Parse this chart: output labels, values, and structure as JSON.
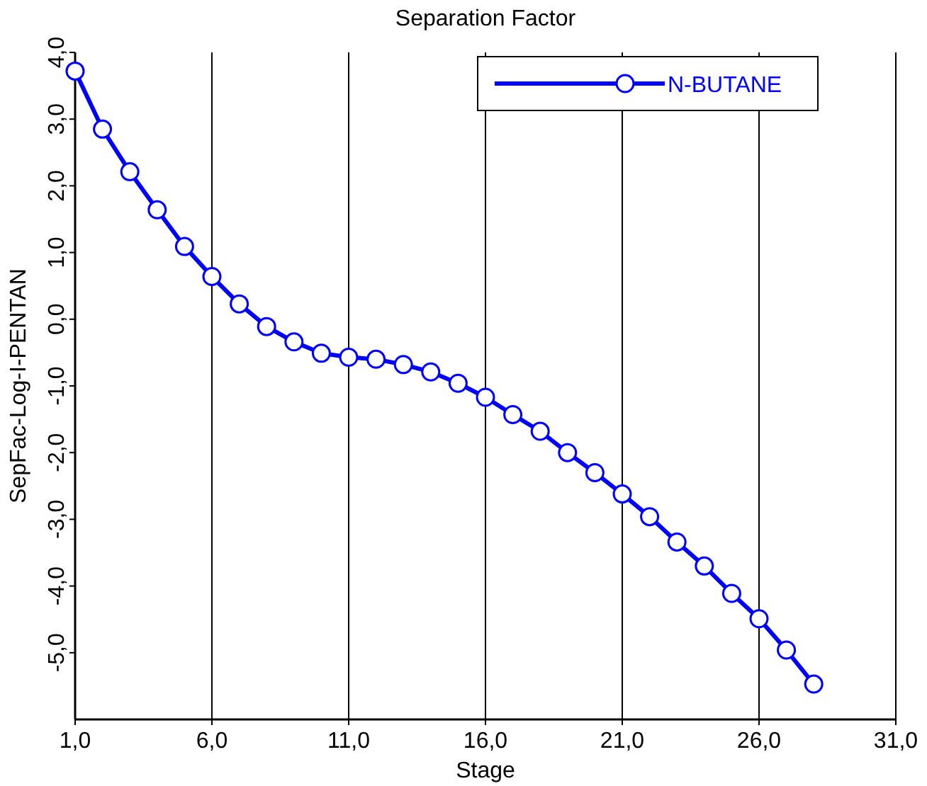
{
  "chart_data": {
    "type": "line",
    "title": "Separation Factor",
    "xlabel": "Stage",
    "ylabel": "SepFac-Log-I-PENTAN",
    "x": [
      1,
      2,
      3,
      4,
      5,
      6,
      7,
      8,
      9,
      10,
      11,
      12,
      13,
      14,
      15,
      16,
      17,
      18,
      19,
      20,
      21,
      22,
      23,
      24,
      25,
      26,
      27,
      28
    ],
    "series": [
      {
        "name": "N-BUTANE",
        "color": "#0000ff",
        "values": [
          3.72,
          2.85,
          2.21,
          1.64,
          1.09,
          0.64,
          0.23,
          -0.11,
          -0.34,
          -0.51,
          -0.57,
          -0.6,
          -0.68,
          -0.79,
          -0.96,
          -1.17,
          -1.43,
          -1.68,
          -2.0,
          -2.3,
          -2.62,
          -2.96,
          -3.34,
          -3.7,
          -4.11,
          -4.49,
          -4.96,
          -5.47
        ]
      }
    ],
    "xlim": [
      1,
      31
    ],
    "xticks": [
      {
        "value": 1,
        "label": "1,0"
      },
      {
        "value": 6,
        "label": "6,0"
      },
      {
        "value": 11,
        "label": "11,0"
      },
      {
        "value": 16,
        "label": "16,0"
      },
      {
        "value": 21,
        "label": "21,0"
      },
      {
        "value": 26,
        "label": "26,0"
      },
      {
        "value": 31,
        "label": "31,0"
      }
    ],
    "ylim": [
      -6,
      4
    ],
    "yticks": [
      {
        "value": 4,
        "label": "4,0"
      },
      {
        "value": 3,
        "label": "3,0"
      },
      {
        "value": 2,
        "label": "2,0"
      },
      {
        "value": 1,
        "label": "1,0"
      },
      {
        "value": 0,
        "label": "0,0"
      },
      {
        "value": -1,
        "label": "-1,0"
      },
      {
        "value": -2,
        "label": "-2,0"
      },
      {
        "value": -3,
        "label": "-3,0"
      },
      {
        "value": -4,
        "label": "-4,0"
      },
      {
        "value": -5,
        "label": "-5,0"
      }
    ],
    "grid": "x",
    "legend": "top right",
    "marker": "circle",
    "line_style": "solid"
  }
}
